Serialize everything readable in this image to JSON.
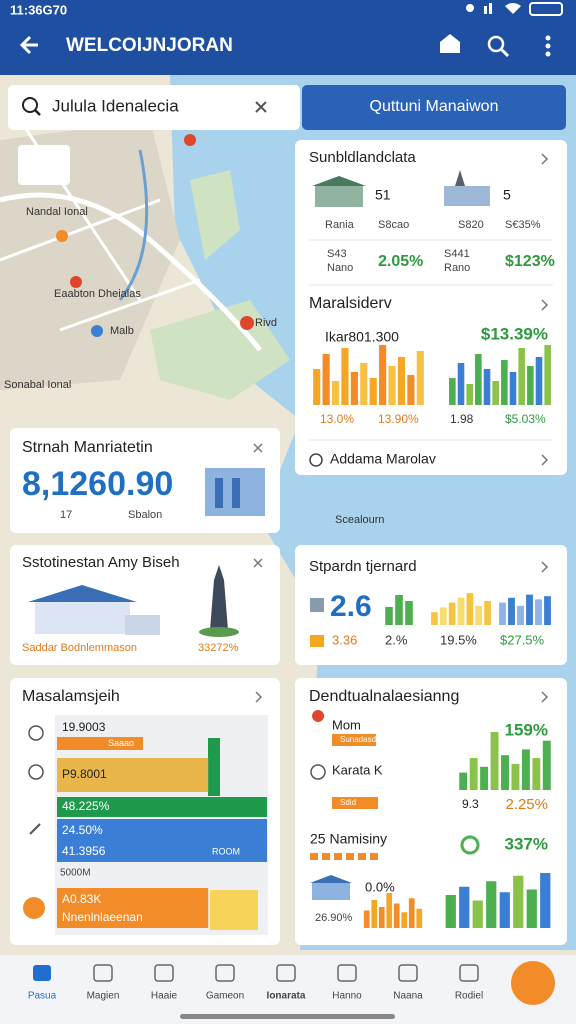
{
  "status_bar": {
    "time": "11:36G70"
  },
  "app_bar": {
    "title": "WELCOIJNJORAN"
  },
  "search": {
    "query": "Julula Idenalecia",
    "button": "Quttuni Manaiwon"
  },
  "map": {
    "labels": [
      "Nandal Ional",
      "Eaabton Dheialas",
      "Malb",
      "Rivd",
      "Sonabal Ional",
      "Scealourn"
    ]
  },
  "summary_card": {
    "title": "Sunbldlandclata",
    "items": [
      {
        "count": "51",
        "name": "Rania",
        "code": "S8cao",
        "id": "S43",
        "unit": "Nano",
        "change": "2.05%"
      },
      {
        "count": "5",
        "name": "S820",
        "code": "S€35%",
        "id": "S441",
        "unit": "Rano",
        "change": "$123%"
      }
    ]
  },
  "market_card": {
    "title": "Maralsiderv",
    "left_value": "Ikar801.300",
    "right_value": "$13.39%",
    "left_chart": {
      "values": [
        60,
        85,
        40,
        95,
        55,
        70,
        45,
        100,
        65,
        80,
        50,
        90
      ],
      "colors": [
        "#f5a623",
        "#f28c28",
        "#f7c244"
      ]
    },
    "right_chart": {
      "values": [
        45,
        70,
        35,
        85,
        60,
        40,
        75,
        55,
        95,
        65,
        80,
        100
      ],
      "colors": [
        "#4caf50",
        "#3a7fd5",
        "#8bc34a"
      ]
    },
    "labels": [
      "13.0%",
      "13.90%",
      "1.98",
      "$5.03%"
    ],
    "footer": "Addama Marolav"
  },
  "balance_card": {
    "title": "Strnah Manriatetin",
    "value": "8,1260.90",
    "sub": [
      "17",
      "Sbalon"
    ]
  },
  "station_card": {
    "title": "Sstotinestan Amy Biseh",
    "caption": "Saddar Bodnlemmason",
    "percent": "33272%"
  },
  "standard_card": {
    "title": "Stpardn tjernard",
    "value": "2.6",
    "green_chart": {
      "values": [
        60,
        100,
        80
      ],
      "colors": [
        "#4caf50"
      ]
    },
    "yellow_chart": {
      "values": [
        40,
        55,
        70,
        85,
        100,
        60,
        75
      ],
      "colors": [
        "#f5c542",
        "#f7dc6f"
      ]
    },
    "blue_chart": {
      "values": [
        70,
        85,
        60,
        95,
        80,
        90
      ],
      "colors": [
        "#8fb3e8",
        "#3a7fd5"
      ]
    },
    "labels": [
      "3.36",
      "2.%",
      "19.5%",
      "$27.5%"
    ]
  },
  "list_card": {
    "title": "Masalamsjeih",
    "rows": [
      {
        "label": "19.9003",
        "tag": "Saaao",
        "value": 22,
        "color": "#f28c28"
      },
      {
        "label": "P9.8001",
        "value": 72,
        "color": "#e8b64a"
      },
      {
        "label": "48.225%",
        "value": 100,
        "color": "#1f9a4c"
      },
      {
        "label": "24.50%",
        "sub": "41.3956",
        "tag": "ROOM",
        "value": 100,
        "color": "#3a7fd5"
      },
      {
        "label": "A0.83K",
        "sub": "Nnenlnlaeenan",
        "value": 72,
        "color": "#f28c28"
      }
    ],
    "footer": "5000M"
  },
  "dev_card": {
    "title": "Dendtualnalaesianng",
    "texts": [
      "Mom",
      "Sunadasd",
      "159%",
      "Karata K",
      "Sdid",
      "9.3",
      "2.25%",
      "25 Namisiny",
      "337%",
      "0.0%",
      "26.90%"
    ],
    "top_chart": {
      "values": [
        30,
        55,
        40,
        100,
        60,
        45,
        70,
        55,
        85
      ],
      "colors": [
        "#4caf50",
        "#8bc34a"
      ]
    },
    "orange_chart": {
      "values": [
        50,
        80,
        60,
        100,
        70,
        45,
        85,
        55
      ],
      "colors": [
        "#f28c28",
        "#f5a623"
      ]
    },
    "bottom_chart": {
      "values": [
        60,
        75,
        50,
        85,
        65,
        95,
        70,
        100
      ],
      "colors": [
        "#4caf50",
        "#3a7fd5",
        "#8bc34a"
      ]
    }
  },
  "nav": {
    "tabs": [
      "Pasua",
      "Magien",
      "Haaie",
      "Gameon",
      "Ionarata",
      "Hanno",
      "Naana",
      "Rodiel"
    ]
  }
}
